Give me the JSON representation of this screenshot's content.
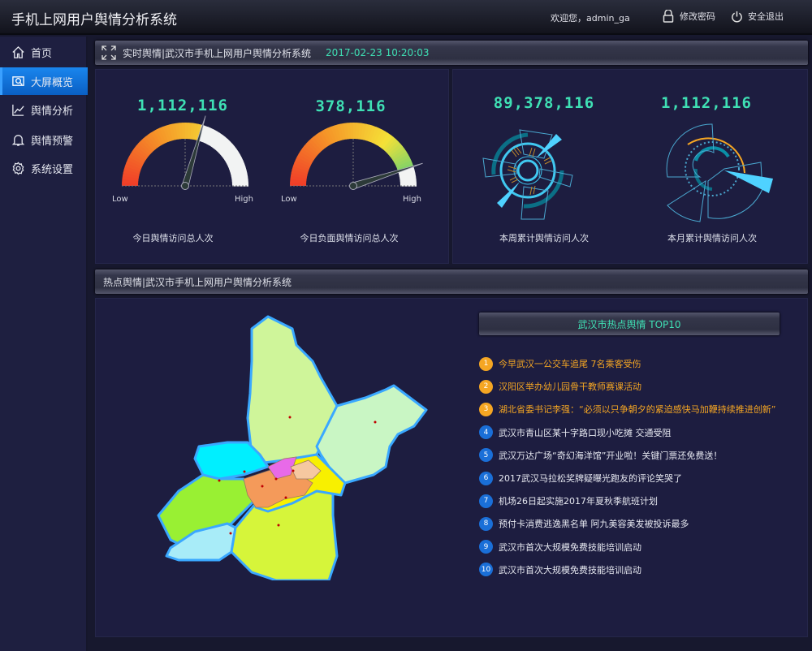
{
  "header": {
    "title": "手机上网用户舆情分析系统",
    "welcome": "欢迎您，admin_ga",
    "change_password": "修改密码",
    "logout": "安全退出"
  },
  "sidebar": {
    "items": [
      {
        "label": "首页",
        "icon": "home-icon"
      },
      {
        "label": "大屏概览",
        "icon": "screen-icon",
        "active": true
      },
      {
        "label": "舆情分析",
        "icon": "line-chart-icon"
      },
      {
        "label": "舆情预警",
        "icon": "bell-icon"
      },
      {
        "label": "系统设置",
        "icon": "gear-icon"
      }
    ]
  },
  "realtime": {
    "title": "实时舆情|武汉市手机上网用户舆情分析系统",
    "datetime": "2017-02-23 10:20:03"
  },
  "gauges": [
    {
      "value": "1,112,116",
      "caption": "今日舆情访问总人次",
      "low": "Low",
      "high": "High",
      "level": 0.59
    },
    {
      "value": "378,116",
      "caption": "今日负面舆情访问总人次",
      "low": "Low",
      "high": "High",
      "level": 0.9
    }
  ],
  "radials": [
    {
      "value": "89,378,116",
      "caption": "本周累计舆情访问人次"
    },
    {
      "value": "1,112,116",
      "caption": "本月累计舆情访问人次"
    }
  ],
  "hotspot": {
    "title": "热点舆情|武汉市手机上网用户舆情分析系统",
    "top10_title": "武汉市热点舆情 TOP10",
    "items": [
      {
        "rank": "1",
        "text": "今早武汉一公交车追尾 7名乘客受伤"
      },
      {
        "rank": "2",
        "text": "汉阳区举办幼儿园骨干教师赛课活动"
      },
      {
        "rank": "3",
        "text": "湖北省委书记李强：“必须以只争朝夕的紧迫感快马加鞭持续推进创新”"
      },
      {
        "rank": "4",
        "text": "武汉市青山区某十字路口现小吃摊 交通受阻"
      },
      {
        "rank": "5",
        "text": "武汉万达广场“奇幻海洋馆”开业啦！关键门票还免费送！"
      },
      {
        "rank": "6",
        "text": "2017武汉马拉松奖牌疑曝光跑友的评论笑哭了"
      },
      {
        "rank": "7",
        "text": "机场26日起实施2017年夏秋季航班计划"
      },
      {
        "rank": "8",
        "text": "预付卡消费逃逸黑名单 阿九美容美发被投诉最多"
      },
      {
        "rank": "9",
        "text": "武汉市首次大规模免费技能培训启动"
      },
      {
        "rank": "10",
        "text": "武汉市首次大规模免费技能培训启动"
      }
    ]
  },
  "colors": {
    "accent": "#3fe0b4",
    "top3": "#f5a623",
    "rank_blue": "#1a6fd8",
    "active_nav": "#1a86ee"
  }
}
